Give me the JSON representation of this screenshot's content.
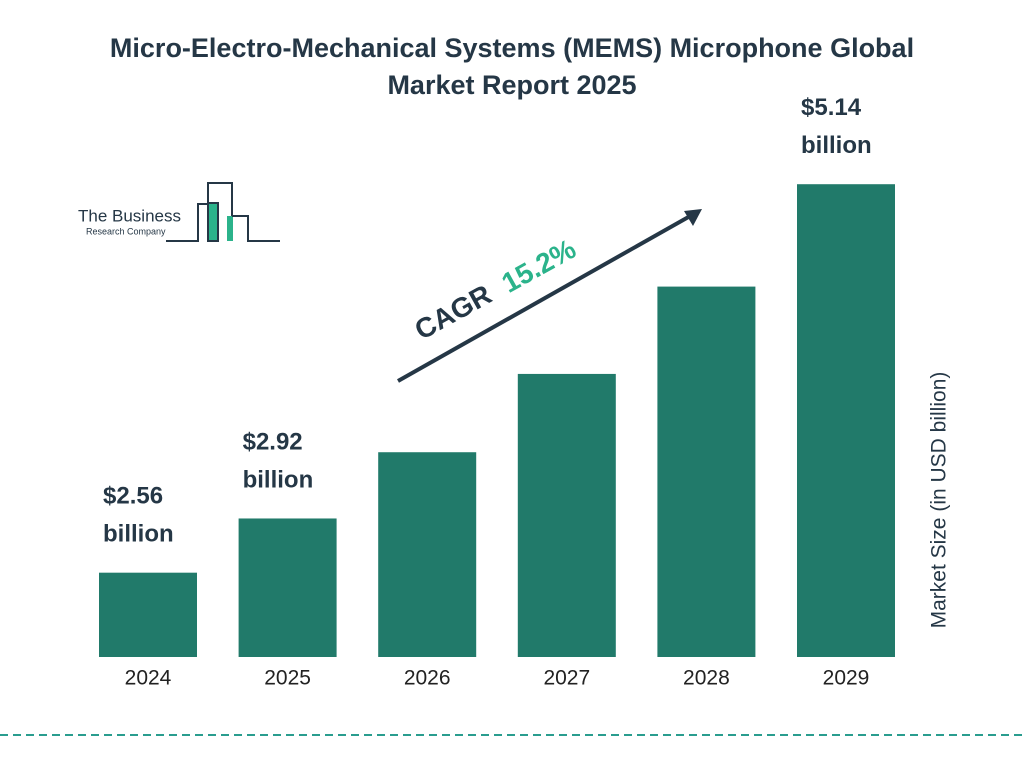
{
  "chart_data": {
    "type": "bar",
    "title": "Micro-Electro-Mechanical Systems (MEMS) Microphone Global Market Report 2025",
    "categories": [
      "2024",
      "2025",
      "2026",
      "2027",
      "2028",
      "2029"
    ],
    "values": [
      2.56,
      2.92,
      3.36,
      3.88,
      4.46,
      5.14
    ],
    "value_labels": [
      "$2.56 billion",
      "$2.92 billion",
      null,
      null,
      null,
      "$5.14 billion"
    ],
    "color": "#217a6a",
    "ylim": [
      2,
      5.5
    ],
    "y_label": "Market Size (in USD billion)",
    "annotation": {
      "label": "CAGR",
      "value": "15.2%"
    }
  },
  "logo": {
    "name": "The Business",
    "subtitle": "Research Company"
  }
}
